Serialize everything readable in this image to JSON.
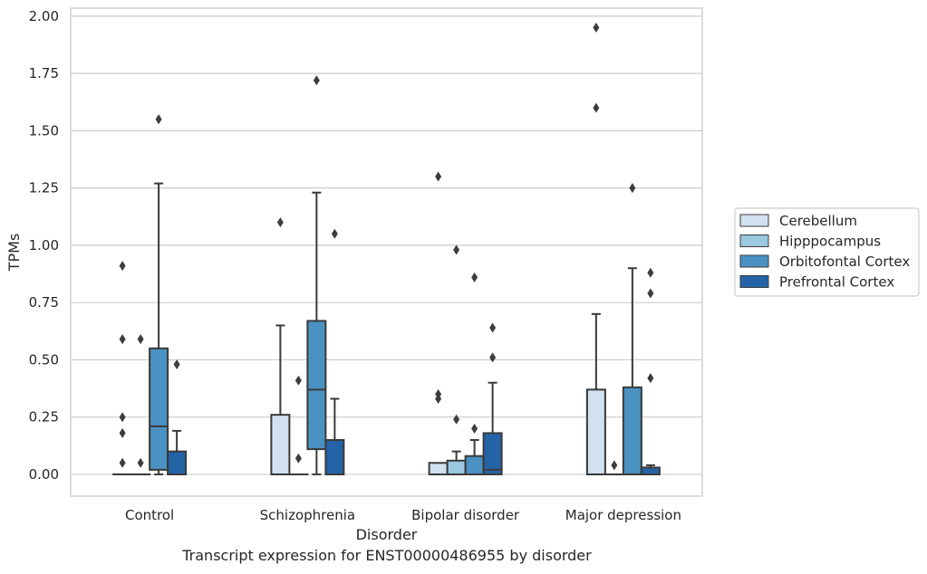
{
  "figure_caption": "Transcript expression for ENST00000486955 by disorder",
  "colors": {
    "Cerebellum": "#d2e1f0",
    "Hipppocampus": "#9ac8e0",
    "Orbitofontal Cortex": "#4b91c2",
    "Prefrontal Cortex": "#2563a7",
    "edge": "#3a3a3a",
    "grid": "#cccccc",
    "axes_frame": "#cccccc"
  },
  "chart_data": {
    "type": "box",
    "title": "",
    "xlabel": "Disorder",
    "ylabel": "TPMs",
    "ylim": [
      -0.095,
      2.035
    ],
    "yticks": [
      0.0,
      0.25,
      0.5,
      0.75,
      1.0,
      1.25,
      1.5,
      1.75,
      2.0
    ],
    "ytick_labels": [
      "0.00",
      "0.25",
      "0.50",
      "0.75",
      "1.00",
      "1.25",
      "1.50",
      "1.75",
      "2.00"
    ],
    "grid": "horizontal",
    "legend_position": "right, outside plot",
    "categories": [
      "Control",
      "Schizophrenia",
      "Bipolar disorder",
      "Major depression"
    ],
    "series": [
      {
        "name": "Cerebellum",
        "boxes": [
          {
            "q1": 0.0,
            "median": 0.0,
            "q3": 0.0,
            "whisker_low": 0.0,
            "whisker_high": 0.0,
            "fliers": [
              0.05,
              0.18,
              0.25,
              0.59,
              0.91
            ]
          },
          {
            "q1": 0.0,
            "median": 0.0,
            "q3": 0.26,
            "whisker_low": 0.0,
            "whisker_high": 0.65,
            "fliers": [
              1.1
            ]
          },
          {
            "q1": 0.0,
            "median": 0.0,
            "q3": 0.05,
            "whisker_low": 0.0,
            "whisker_high": 0.05,
            "fliers": [
              0.33,
              0.35,
              1.3
            ]
          },
          {
            "q1": 0.0,
            "median": 0.0,
            "q3": 0.37,
            "whisker_low": 0.0,
            "whisker_high": 0.7,
            "fliers": [
              1.6,
              1.95
            ]
          }
        ]
      },
      {
        "name": "Hipppocampus",
        "boxes": [
          {
            "q1": 0.0,
            "median": 0.0,
            "q3": 0.0,
            "whisker_low": 0.0,
            "whisker_high": 0.0,
            "fliers": [
              0.05,
              0.59
            ]
          },
          {
            "q1": 0.0,
            "median": 0.0,
            "q3": 0.0,
            "whisker_low": 0.0,
            "whisker_high": 0.0,
            "fliers": [
              0.07,
              0.41
            ]
          },
          {
            "q1": 0.0,
            "median": 0.0,
            "q3": 0.06,
            "whisker_low": 0.0,
            "whisker_high": 0.1,
            "fliers": [
              0.24,
              0.98
            ]
          },
          {
            "q1": 0.0,
            "median": 0.0,
            "q3": 0.0,
            "whisker_low": 0.0,
            "whisker_high": 0.0,
            "fliers": [
              0.04
            ]
          }
        ]
      },
      {
        "name": "Orbitofontal Cortex",
        "boxes": [
          {
            "q1": 0.02,
            "median": 0.21,
            "q3": 0.55,
            "whisker_low": 0.0,
            "whisker_high": 1.27,
            "fliers": [
              1.55
            ]
          },
          {
            "q1": 0.11,
            "median": 0.37,
            "q3": 0.67,
            "whisker_low": 0.0,
            "whisker_high": 1.23,
            "fliers": [
              1.72
            ]
          },
          {
            "q1": 0.0,
            "median": 0.0,
            "q3": 0.08,
            "whisker_low": 0.0,
            "whisker_high": 0.15,
            "fliers": [
              0.2,
              0.86
            ]
          },
          {
            "q1": 0.0,
            "median": 0.0,
            "q3": 0.38,
            "whisker_low": 0.0,
            "whisker_high": 0.9,
            "fliers": [
              1.25
            ]
          }
        ]
      },
      {
        "name": "Prefrontal Cortex",
        "boxes": [
          {
            "q1": 0.0,
            "median": 0.0,
            "q3": 0.1,
            "whisker_low": 0.0,
            "whisker_high": 0.19,
            "fliers": [
              0.48
            ]
          },
          {
            "q1": 0.0,
            "median": 0.0,
            "q3": 0.15,
            "whisker_low": 0.0,
            "whisker_high": 0.33,
            "fliers": [
              1.05
            ]
          },
          {
            "q1": 0.0,
            "median": 0.02,
            "q3": 0.18,
            "whisker_low": 0.0,
            "whisker_high": 0.4,
            "fliers": [
              0.51,
              0.64
            ]
          },
          {
            "q1": 0.0,
            "median": 0.0,
            "q3": 0.03,
            "whisker_low": 0.0,
            "whisker_high": 0.04,
            "fliers": [
              0.42,
              0.79,
              0.88
            ]
          }
        ]
      }
    ]
  }
}
